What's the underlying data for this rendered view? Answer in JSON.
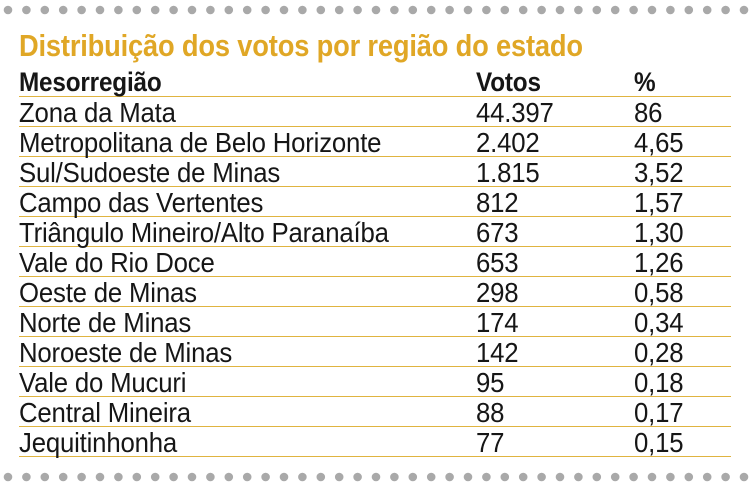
{
  "title": "Distribuição dos votos por região do estado",
  "colors": {
    "title": "#e0a726",
    "rule": "#e0b440",
    "dots": "#a9a9a9",
    "text": "#161616"
  },
  "table": {
    "headers": {
      "region": "Mesorregião",
      "votes": "Votos",
      "pct": "%"
    },
    "rows": [
      {
        "region": "Zona da Mata",
        "votes": "44.397",
        "pct": "86"
      },
      {
        "region": "Metropolitana de Belo Horizonte",
        "votes": "2.402",
        "pct": "4,65"
      },
      {
        "region": "Sul/Sudoeste de Minas",
        "votes": "1.815",
        "pct": "3,52"
      },
      {
        "region": "Campo das Vertentes",
        "votes": "812",
        "pct": "1,57"
      },
      {
        "region": "Triângulo Mineiro/Alto Paranaíba",
        "votes": "673",
        "pct": "1,30"
      },
      {
        "region": "Vale do Rio Doce",
        "votes": "653",
        "pct": "1,26"
      },
      {
        "region": "Oeste de Minas",
        "votes": "298",
        "pct": "0,58"
      },
      {
        "region": "Norte de Minas",
        "votes": "174",
        "pct": "0,34"
      },
      {
        "region": "Noroeste de Minas",
        "votes": "142",
        "pct": "0,28"
      },
      {
        "region": "Vale do Mucuri",
        "votes": "95",
        "pct": "0,18"
      },
      {
        "region": "Central Mineira",
        "votes": "88",
        "pct": "0,17"
      },
      {
        "region": "Jequitinhonha",
        "votes": "77",
        "pct": "0,15"
      }
    ]
  }
}
